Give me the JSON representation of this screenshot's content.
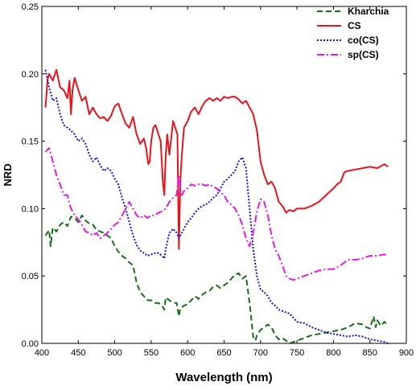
{
  "chart_data": {
    "type": "line",
    "xlabel": "Wavelength (nm)",
    "ylabel": "NRD",
    "xlim": [
      400,
      900
    ],
    "ylim": [
      0,
      0.25
    ],
    "xticks": [
      "400",
      "450",
      "500",
      "550",
      "600",
      "650",
      "700",
      "750",
      "800",
      "850",
      "900"
    ],
    "yticks": [
      "0.00",
      "0.05",
      "0.10",
      "0.15",
      "0.20",
      "0.25"
    ],
    "grid": false,
    "legend_position": "top-right",
    "series": [
      {
        "name": "Kharchia",
        "color": "#1a6b1a",
        "dash": "7,4",
        "x": [
          405,
          410,
          412,
          415,
          420,
          425,
          430,
          435,
          440,
          445,
          450,
          455,
          460,
          465,
          470,
          475,
          480,
          485,
          490,
          495,
          500,
          505,
          510,
          515,
          520,
          525,
          530,
          535,
          540,
          545,
          550,
          555,
          560,
          565,
          568,
          570,
          575,
          580,
          585,
          588,
          590,
          595,
          600,
          605,
          610,
          615,
          620,
          625,
          630,
          635,
          640,
          645,
          650,
          655,
          660,
          665,
          670,
          675,
          680,
          685,
          690,
          693,
          695,
          700,
          705,
          710,
          715,
          720,
          725,
          730,
          735,
          740,
          745,
          750,
          760,
          770,
          780,
          790,
          800,
          810,
          820,
          830,
          840,
          845,
          850,
          855,
          858,
          860,
          865,
          870,
          875
        ],
        "y": [
          0.08,
          0.084,
          0.072,
          0.086,
          0.083,
          0.088,
          0.09,
          0.087,
          0.094,
          0.093,
          0.09,
          0.095,
          0.091,
          0.089,
          0.088,
          0.084,
          0.083,
          0.082,
          0.08,
          0.078,
          0.072,
          0.068,
          0.065,
          0.063,
          0.06,
          0.058,
          0.045,
          0.038,
          0.035,
          0.032,
          0.032,
          0.03,
          0.03,
          0.028,
          0.025,
          0.034,
          0.032,
          0.03,
          0.03,
          0.02,
          0.026,
          0.028,
          0.029,
          0.032,
          0.035,
          0.033,
          0.036,
          0.038,
          0.039,
          0.042,
          0.043,
          0.041,
          0.043,
          0.045,
          0.048,
          0.051,
          0.052,
          0.048,
          0.05,
          0.03,
          0.005,
          0.002,
          0.006,
          0.01,
          0.012,
          0.014,
          0.012,
          0.006,
          0.003,
          0.004,
          0.002,
          0.0,
          0.001,
          0.002,
          0.004,
          0.006,
          0.007,
          0.008,
          0.009,
          0.01,
          0.012,
          0.015,
          0.014,
          0.012,
          0.011,
          0.02,
          0.012,
          0.017,
          0.013,
          0.016,
          0.013
        ]
      },
      {
        "name": "CS",
        "color": "#e8141c",
        "dash": "",
        "x": [
          405,
          408,
          410,
          415,
          420,
          425,
          430,
          435,
          438,
          440,
          442,
          445,
          450,
          455,
          460,
          465,
          470,
          475,
          480,
          485,
          490,
          495,
          500,
          505,
          510,
          515,
          520,
          525,
          530,
          535,
          540,
          543,
          546,
          548,
          550,
          553,
          556,
          560,
          563,
          566,
          568,
          570,
          572,
          575,
          578,
          580,
          583,
          586,
          588,
          590,
          592,
          595,
          598,
          600,
          605,
          610,
          615,
          620,
          625,
          630,
          635,
          640,
          645,
          650,
          655,
          660,
          665,
          670,
          675,
          680,
          685,
          690,
          695,
          700,
          705,
          710,
          715,
          720,
          725,
          730,
          735,
          740,
          745,
          750,
          760,
          770,
          780,
          790,
          800,
          805,
          810,
          815,
          820,
          830,
          840,
          850,
          860,
          870,
          875
        ],
        "y": [
          0.175,
          0.196,
          0.2,
          0.195,
          0.203,
          0.19,
          0.188,
          0.182,
          0.195,
          0.17,
          0.188,
          0.197,
          0.188,
          0.18,
          0.183,
          0.17,
          0.175,
          0.17,
          0.167,
          0.168,
          0.165,
          0.169,
          0.176,
          0.178,
          0.17,
          0.163,
          0.16,
          0.168,
          0.155,
          0.148,
          0.152,
          0.145,
          0.133,
          0.135,
          0.15,
          0.16,
          0.162,
          0.155,
          0.15,
          0.12,
          0.11,
          0.14,
          0.155,
          0.14,
          0.155,
          0.165,
          0.16,
          0.155,
          0.07,
          0.12,
          0.14,
          0.16,
          0.163,
          0.165,
          0.172,
          0.175,
          0.17,
          0.176,
          0.18,
          0.182,
          0.18,
          0.182,
          0.18,
          0.183,
          0.182,
          0.183,
          0.183,
          0.181,
          0.178,
          0.18,
          0.175,
          0.17,
          0.158,
          0.135,
          0.125,
          0.118,
          0.12,
          0.115,
          0.105,
          0.102,
          0.097,
          0.099,
          0.098,
          0.1,
          0.1,
          0.102,
          0.105,
          0.11,
          0.115,
          0.118,
          0.12,
          0.127,
          0.128,
          0.129,
          0.13,
          0.131,
          0.13,
          0.133,
          0.131
        ]
      },
      {
        "name": "co(CS)",
        "color": "#1414d8",
        "dash": "2,2",
        "x": [
          405,
          410,
          415,
          420,
          425,
          430,
          435,
          440,
          445,
          450,
          455,
          460,
          465,
          470,
          475,
          480,
          485,
          490,
          495,
          500,
          505,
          510,
          515,
          520,
          525,
          530,
          535,
          540,
          545,
          550,
          555,
          560,
          565,
          568,
          570,
          575,
          580,
          585,
          588,
          590,
          595,
          600,
          605,
          610,
          615,
          620,
          625,
          630,
          635,
          640,
          645,
          650,
          655,
          660,
          665,
          670,
          675,
          680,
          685,
          690,
          695,
          700,
          705,
          710,
          715,
          720,
          725,
          730,
          740,
          750,
          760,
          770,
          780,
          790,
          800,
          810,
          820,
          830,
          840,
          850,
          860,
          870,
          875
        ],
        "y": [
          0.203,
          0.19,
          0.18,
          0.182,
          0.17,
          0.162,
          0.16,
          0.158,
          0.155,
          0.15,
          0.152,
          0.148,
          0.14,
          0.135,
          0.138,
          0.132,
          0.128,
          0.13,
          0.128,
          0.122,
          0.118,
          0.108,
          0.1,
          0.09,
          0.08,
          0.073,
          0.069,
          0.067,
          0.065,
          0.066,
          0.067,
          0.067,
          0.065,
          0.063,
          0.07,
          0.082,
          0.085,
          0.082,
          0.078,
          0.08,
          0.085,
          0.09,
          0.093,
          0.097,
          0.1,
          0.102,
          0.103,
          0.105,
          0.108,
          0.11,
          0.115,
          0.12,
          0.122,
          0.125,
          0.128,
          0.135,
          0.138,
          0.13,
          0.1,
          0.07,
          0.05,
          0.04,
          0.038,
          0.035,
          0.03,
          0.028,
          0.025,
          0.024,
          0.022,
          0.016,
          0.015,
          0.012,
          0.01,
          0.008,
          0.007,
          0.006,
          0.005,
          0.006,
          0.005,
          0.003,
          0.002,
          0.001,
          0.0
        ]
      },
      {
        "name": "sp(CS)",
        "color": "#e31ce3",
        "dash": "9,3,2,3",
        "x": [
          405,
          410,
          415,
          420,
          425,
          430,
          435,
          440,
          445,
          450,
          455,
          460,
          465,
          470,
          475,
          480,
          485,
          490,
          495,
          500,
          505,
          510,
          515,
          520,
          525,
          530,
          535,
          540,
          545,
          550,
          555,
          560,
          565,
          570,
          575,
          580,
          585,
          588,
          590,
          592,
          595,
          600,
          605,
          610,
          615,
          620,
          625,
          630,
          635,
          640,
          645,
          650,
          655,
          660,
          665,
          670,
          675,
          680,
          685,
          690,
          695,
          700,
          705,
          710,
          715,
          720,
          725,
          730,
          735,
          740,
          745,
          750,
          760,
          770,
          780,
          790,
          800,
          810,
          820,
          830,
          840,
          850,
          860,
          870,
          875
        ],
        "y": [
          0.142,
          0.145,
          0.135,
          0.125,
          0.118,
          0.11,
          0.11,
          0.1,
          0.095,
          0.092,
          0.088,
          0.083,
          0.082,
          0.08,
          0.082,
          0.078,
          0.08,
          0.082,
          0.085,
          0.088,
          0.09,
          0.095,
          0.1,
          0.105,
          0.1,
          0.095,
          0.093,
          0.095,
          0.093,
          0.095,
          0.095,
          0.097,
          0.098,
          0.1,
          0.105,
          0.108,
          0.11,
          0.125,
          0.115,
          0.11,
          0.113,
          0.115,
          0.118,
          0.117,
          0.118,
          0.118,
          0.117,
          0.118,
          0.116,
          0.115,
          0.112,
          0.11,
          0.105,
          0.103,
          0.1,
          0.095,
          0.088,
          0.078,
          0.072,
          0.082,
          0.098,
          0.107,
          0.105,
          0.095,
          0.08,
          0.07,
          0.065,
          0.058,
          0.05,
          0.048,
          0.047,
          0.048,
          0.05,
          0.052,
          0.054,
          0.055,
          0.055,
          0.058,
          0.062,
          0.062,
          0.063,
          0.065,
          0.065,
          0.066,
          0.065
        ]
      }
    ]
  }
}
